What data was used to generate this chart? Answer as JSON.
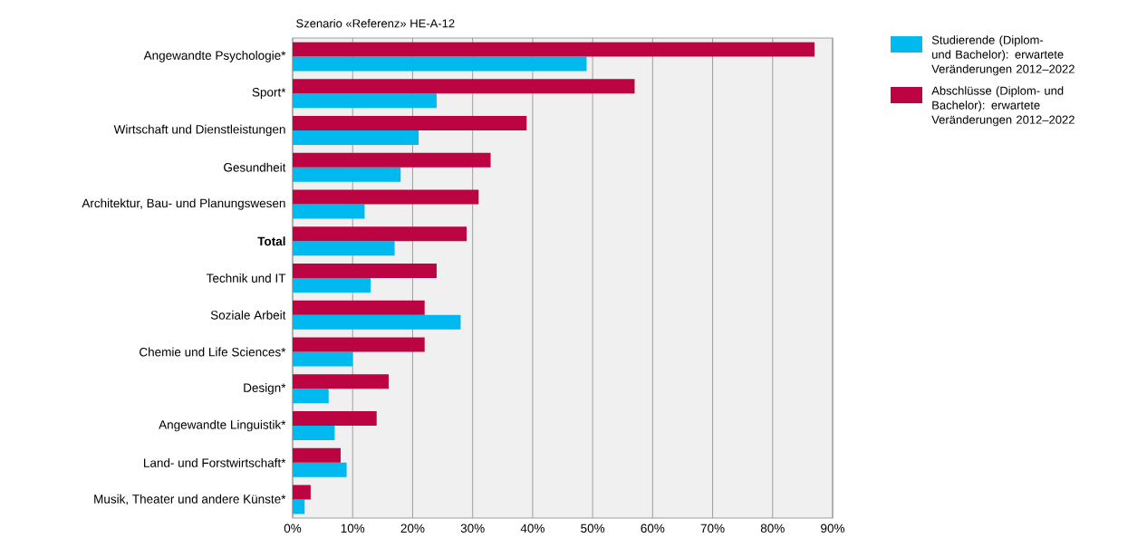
{
  "chart_data": {
    "type": "bar",
    "orientation": "horizontal",
    "title": "Szenario «Referenz» HE-A-12",
    "categories": [
      "Angewandte Psychologie*",
      "Sport*",
      "Wirtschaft und Dienstleistungen",
      "Gesundheit",
      "Architektur, Bau- und Planungswesen",
      "**Total**",
      "Technik und IT",
      "Soziale Arbeit",
      "Chemie und Life Sciences*",
      "Design*",
      "Angewandte Linguistik*",
      "Land- und Forstwirtschaft*",
      "Musik, Theater und andere Künste*"
    ],
    "series": [
      {
        "name": "Studierende (Diplom- und Bachelor): erwartete Veränderungen 2012–2022",
        "color": "#00b9ee",
        "values": [
          49,
          24,
          21,
          18,
          12,
          17,
          13,
          28,
          10,
          6,
          7,
          9,
          2
        ]
      },
      {
        "name": "Abschlüsse (Diplom- und Bachelor): erwartete Veränderungen 2012–2022",
        "color": "#bb0441",
        "values": [
          87,
          57,
          39,
          33,
          31,
          29,
          24,
          22,
          22,
          16,
          14,
          8,
          3
        ]
      }
    ],
    "xlim": [
      0,
      90
    ],
    "xticks": [
      {
        "value": 0,
        "label": "0%"
      },
      {
        "value": 10,
        "label": "10%"
      },
      {
        "value": 20,
        "label": "20%"
      },
      {
        "value": 30,
        "label": "30%"
      },
      {
        "value": 40,
        "label": "40%"
      },
      {
        "value": 50,
        "label": "50%"
      },
      {
        "value": 60,
        "label": "60%"
      },
      {
        "value": 70,
        "label": "70%"
      },
      {
        "value": 80,
        "label": "80%"
      },
      {
        "value": 90,
        "label": "90%"
      }
    ],
    "grid": "x",
    "legend": "top right"
  }
}
